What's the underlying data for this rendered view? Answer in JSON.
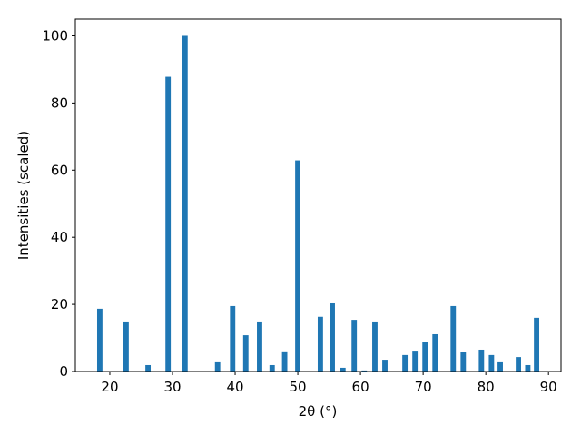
{
  "chart_data": {
    "type": "bar",
    "x_label": "2θ (°)",
    "y_label": "Intensities (scaled)",
    "x": [
      18.4,
      22.6,
      26.1,
      29.3,
      32.0,
      37.2,
      39.6,
      41.7,
      43.9,
      45.9,
      47.9,
      50.0,
      53.6,
      55.5,
      57.2,
      59.0,
      60.6,
      62.3,
      63.9,
      67.1,
      68.7,
      70.3,
      71.9,
      74.8,
      76.4,
      79.3,
      80.9,
      82.3,
      85.2,
      86.7,
      88.1
    ],
    "values": [
      18.7,
      14.9,
      1.9,
      87.8,
      100,
      3.0,
      19.5,
      10.8,
      14.9,
      1.9,
      6.0,
      62.9,
      16.3,
      20.3,
      1.1,
      15.4,
      0.3,
      14.9,
      3.5,
      4.9,
      6.2,
      8.7,
      11.1,
      19.5,
      5.7,
      6.5,
      4.9,
      3.0,
      4.3,
      1.9,
      16.0
    ],
    "color": "#1f77b4",
    "xlim": [
      14.5,
      92.0
    ],
    "xticks": [
      20,
      30,
      40,
      50,
      60,
      70,
      80,
      90
    ],
    "ylim": [
      0,
      105
    ],
    "yticks": [
      0,
      20,
      40,
      60,
      80,
      100
    ],
    "grid": false
  }
}
